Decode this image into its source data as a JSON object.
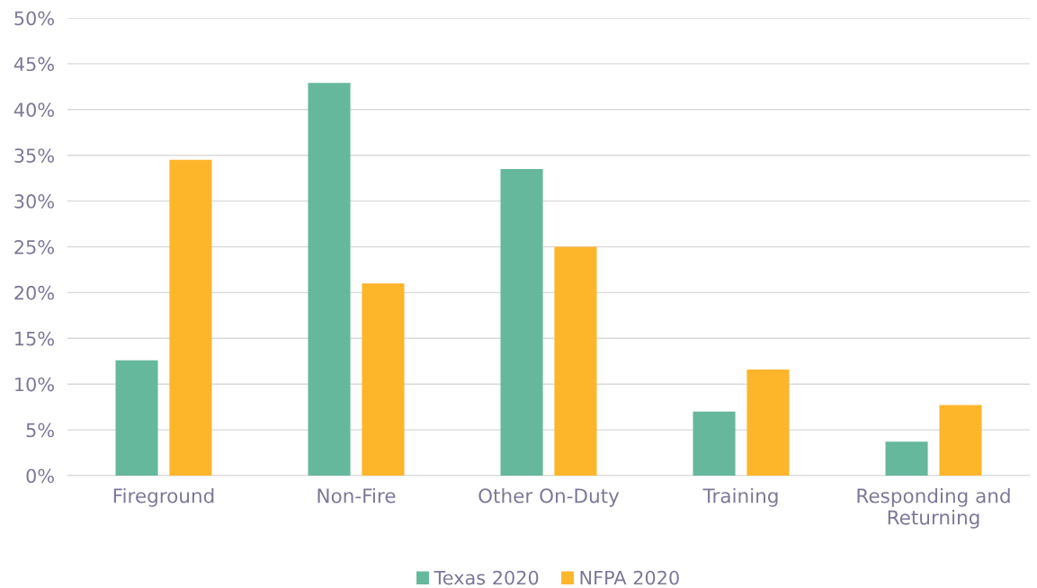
{
  "chart_data": {
    "type": "bar",
    "categories": [
      "Fireground",
      "Non-Fire",
      "Other On-Duty",
      "Training",
      "Responding and\nReturning"
    ],
    "series": [
      {
        "name": "Texas 2020",
        "color": "#66b89c",
        "values": [
          12.6,
          42.9,
          33.5,
          7.0,
          3.7
        ]
      },
      {
        "name": "NFPA 2020",
        "color": "#fdb52a",
        "values": [
          34.5,
          21.0,
          25.0,
          11.6,
          7.7
        ]
      }
    ],
    "ylim": [
      0,
      50
    ],
    "yticks": [
      {
        "value": 0,
        "label": "0%"
      },
      {
        "value": 5,
        "label": "5%"
      },
      {
        "value": 10,
        "label": "10%"
      },
      {
        "value": 15,
        "label": "15%"
      },
      {
        "value": 20,
        "label": "20%"
      },
      {
        "value": 25,
        "label": "25%"
      },
      {
        "value": 30,
        "label": "30%"
      },
      {
        "value": 35,
        "label": "35%"
      },
      {
        "value": 40,
        "label": "40%"
      },
      {
        "value": 45,
        "label": "45%"
      },
      {
        "value": 50,
        "label": "50%"
      }
    ],
    "grid": "y",
    "legend": "bottom"
  }
}
